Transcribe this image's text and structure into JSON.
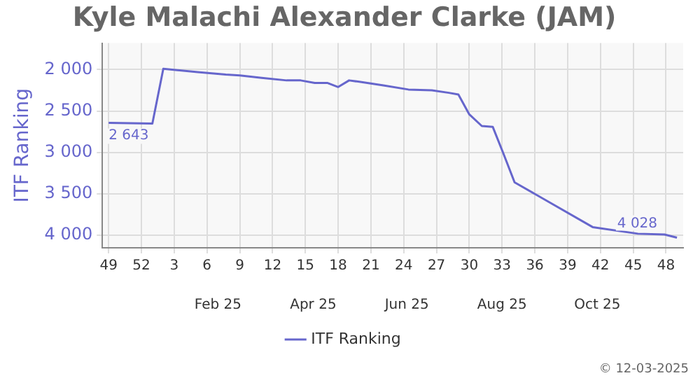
{
  "chart_data": {
    "type": "line",
    "title": "Kyle Malachi Alexander Clarke (JAM)",
    "ylabel": "ITF Ranking",
    "x": [
      "2024-12-02",
      "2024-12-30",
      "2025-01-06",
      "2025-01-28",
      "2025-02-15",
      "2025-02-24",
      "2025-03-10",
      "2025-03-26",
      "2025-04-04",
      "2025-04-13",
      "2025-04-21",
      "2025-04-28",
      "2025-05-05",
      "2025-05-13",
      "2025-05-27",
      "2025-06-12",
      "2025-06-27",
      "2025-07-08",
      "2025-07-14",
      "2025-07-21",
      "2025-07-29",
      "2025-08-05",
      "2025-08-12",
      "2025-08-19",
      "2025-10-08",
      "2025-11-06",
      "2025-11-23",
      "2025-12-01"
    ],
    "series": [
      {
        "name": "ITF Ranking",
        "color": "#6666cc",
        "values": [
          2643,
          2650,
          1990,
          2030,
          2060,
          2070,
          2100,
          2130,
          2130,
          2160,
          2160,
          2210,
          2130,
          2150,
          2190,
          2240,
          2250,
          2280,
          2300,
          2540,
          2680,
          2690,
          3020,
          3360,
          3900,
          3980,
          3990,
          4028
        ],
        "value_labels": [
          "2 643",
          null,
          null,
          null,
          null,
          null,
          null,
          null,
          null,
          null,
          null,
          null,
          null,
          null,
          null,
          null,
          null,
          null,
          null,
          null,
          null,
          null,
          null,
          null,
          null,
          null,
          null,
          "4 028"
        ]
      }
    ],
    "xlim": [
      "2024-11-28",
      "2025-12-05"
    ],
    "xticks": [
      {
        "value": "2024-12-02",
        "label": "49"
      },
      {
        "value": "2024-12-23",
        "label": "52"
      },
      {
        "value": "2025-01-13",
        "label": "3"
      },
      {
        "value": "2025-02-03",
        "label": "6"
      },
      {
        "value": "2025-02-24",
        "label": "9"
      },
      {
        "value": "2025-03-17",
        "label": "12"
      },
      {
        "value": "2025-04-07",
        "label": "15"
      },
      {
        "value": "2025-04-28",
        "label": "18"
      },
      {
        "value": "2025-05-19",
        "label": "21"
      },
      {
        "value": "2025-06-09",
        "label": "24"
      },
      {
        "value": "2025-06-30",
        "label": "27"
      },
      {
        "value": "2025-07-21",
        "label": "30"
      },
      {
        "value": "2025-08-11",
        "label": "33"
      },
      {
        "value": "2025-09-01",
        "label": "36"
      },
      {
        "value": "2025-09-22",
        "label": "39"
      },
      {
        "value": "2025-10-13",
        "label": "42"
      },
      {
        "value": "2025-11-03",
        "label": "45"
      },
      {
        "value": "2025-11-24",
        "label": "48"
      }
    ],
    "x2lim": [
      "2024-11-28",
      "2025-12-05"
    ],
    "x2ticks": [
      {
        "value": "2025-02-10",
        "label": "Feb 25"
      },
      {
        "value": "2025-04-12",
        "label": "Apr 25"
      },
      {
        "value": "2025-06-11",
        "label": "Jun 25"
      },
      {
        "value": "2025-08-11",
        "label": "Aug 25"
      },
      {
        "value": "2025-10-11",
        "label": "Oct 25"
      }
    ],
    "ylim": [
      4150,
      1680
    ],
    "yticks": [
      {
        "value": 2000,
        "label": "2 000"
      },
      {
        "value": 2500,
        "label": "2 500"
      },
      {
        "value": 3000,
        "label": "3 000"
      },
      {
        "value": 3500,
        "label": "3 500"
      },
      {
        "value": 4000,
        "label": "4 000"
      }
    ],
    "grid": true,
    "legend": "bottom",
    "marker": "none",
    "line_style": "solid",
    "annotations": [
      "© 12-03-2025"
    ]
  }
}
